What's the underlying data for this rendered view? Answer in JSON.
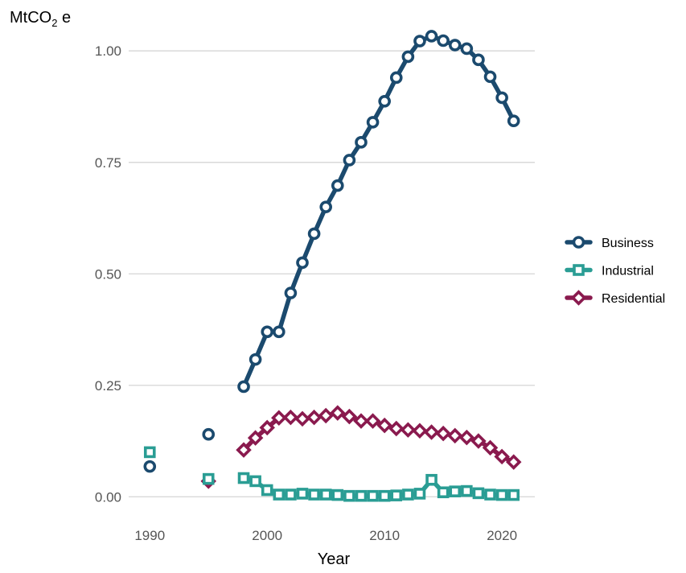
{
  "chart_data": {
    "type": "line",
    "title": "",
    "xlabel": "Year",
    "ylabel_main": "MtCO",
    "ylabel_sub": "2",
    "ylabel_suffix": " e",
    "xlim": [
      1988.2,
      2022.8
    ],
    "ylim": [
      -0.05,
      1.06
    ],
    "xticks": [
      1990,
      2000,
      2010,
      2020
    ],
    "xtick_labels": [
      "1990",
      "2000",
      "2010",
      "2020"
    ],
    "yticks": [
      0,
      0.25,
      0.5,
      0.75,
      1.0
    ],
    "ytick_labels": [
      "0.00",
      "0.25",
      "0.50",
      "0.75",
      "1.00"
    ],
    "grid": "horizontal major",
    "legend_position": "right",
    "series": [
      {
        "name": "Business",
        "color": "#1b4a6e",
        "marker": "circle",
        "points": [
          {
            "x": 1990,
            "y": 0.068,
            "line": false
          },
          {
            "x": 1995,
            "y": 0.14,
            "line": false
          },
          {
            "x": 1998,
            "y": 0.247,
            "line": true
          },
          {
            "x": 1999,
            "y": 0.308,
            "line": true
          },
          {
            "x": 2000,
            "y": 0.37,
            "line": true
          },
          {
            "x": 2001,
            "y": 0.37,
            "line": true
          },
          {
            "x": 2002,
            "y": 0.457,
            "line": true
          },
          {
            "x": 2003,
            "y": 0.525,
            "line": true
          },
          {
            "x": 2004,
            "y": 0.59,
            "line": true
          },
          {
            "x": 2005,
            "y": 0.65,
            "line": true
          },
          {
            "x": 2006,
            "y": 0.698,
            "line": true
          },
          {
            "x": 2007,
            "y": 0.755,
            "line": true
          },
          {
            "x": 2008,
            "y": 0.795,
            "line": true
          },
          {
            "x": 2009,
            "y": 0.84,
            "line": true
          },
          {
            "x": 2010,
            "y": 0.887,
            "line": true
          },
          {
            "x": 2011,
            "y": 0.94,
            "line": true
          },
          {
            "x": 2012,
            "y": 0.987,
            "line": true
          },
          {
            "x": 2013,
            "y": 1.022,
            "line": true
          },
          {
            "x": 2014,
            "y": 1.033,
            "line": true
          },
          {
            "x": 2015,
            "y": 1.023,
            "line": true
          },
          {
            "x": 2016,
            "y": 1.013,
            "line": true
          },
          {
            "x": 2017,
            "y": 1.005,
            "line": true
          },
          {
            "x": 2018,
            "y": 0.98,
            "line": true
          },
          {
            "x": 2019,
            "y": 0.942,
            "line": true
          },
          {
            "x": 2020,
            "y": 0.895,
            "line": true
          },
          {
            "x": 2021,
            "y": 0.843,
            "line": true
          }
        ]
      },
      {
        "name": "Industrial",
        "color": "#2a9d94",
        "marker": "square",
        "points": [
          {
            "x": 1990,
            "y": 0.1,
            "line": false
          },
          {
            "x": 1995,
            "y": 0.04,
            "line": false
          },
          {
            "x": 1998,
            "y": 0.042,
            "line": true
          },
          {
            "x": 1999,
            "y": 0.035,
            "line": true
          },
          {
            "x": 2000,
            "y": 0.015,
            "line": true
          },
          {
            "x": 2001,
            "y": 0.005,
            "line": true
          },
          {
            "x": 2002,
            "y": 0.005,
            "line": true
          },
          {
            "x": 2003,
            "y": 0.007,
            "line": true
          },
          {
            "x": 2004,
            "y": 0.005,
            "line": true
          },
          {
            "x": 2005,
            "y": 0.005,
            "line": true
          },
          {
            "x": 2006,
            "y": 0.004,
            "line": true
          },
          {
            "x": 2007,
            "y": 0.002,
            "line": true
          },
          {
            "x": 2008,
            "y": 0.002,
            "line": true
          },
          {
            "x": 2009,
            "y": 0.002,
            "line": true
          },
          {
            "x": 2010,
            "y": 0.002,
            "line": true
          },
          {
            "x": 2011,
            "y": 0.003,
            "line": true
          },
          {
            "x": 2012,
            "y": 0.005,
            "line": true
          },
          {
            "x": 2013,
            "y": 0.007,
            "line": true
          },
          {
            "x": 2014,
            "y": 0.038,
            "line": true
          },
          {
            "x": 2015,
            "y": 0.01,
            "line": true
          },
          {
            "x": 2016,
            "y": 0.012,
            "line": true
          },
          {
            "x": 2017,
            "y": 0.013,
            "line": true
          },
          {
            "x": 2018,
            "y": 0.008,
            "line": true
          },
          {
            "x": 2019,
            "y": 0.005,
            "line": true
          },
          {
            "x": 2020,
            "y": 0.004,
            "line": true
          },
          {
            "x": 2021,
            "y": 0.004,
            "line": true
          }
        ]
      },
      {
        "name": "Residential",
        "color": "#8a1a4e",
        "marker": "diamond",
        "points": [
          {
            "x": 1995,
            "y": 0.035,
            "line": false
          },
          {
            "x": 1998,
            "y": 0.105,
            "line": true
          },
          {
            "x": 1999,
            "y": 0.132,
            "line": true
          },
          {
            "x": 2000,
            "y": 0.155,
            "line": true
          },
          {
            "x": 2001,
            "y": 0.177,
            "line": true
          },
          {
            "x": 2002,
            "y": 0.178,
            "line": true
          },
          {
            "x": 2003,
            "y": 0.175,
            "line": true
          },
          {
            "x": 2004,
            "y": 0.178,
            "line": true
          },
          {
            "x": 2005,
            "y": 0.182,
            "line": true
          },
          {
            "x": 2006,
            "y": 0.188,
            "line": true
          },
          {
            "x": 2007,
            "y": 0.18,
            "line": true
          },
          {
            "x": 2008,
            "y": 0.17,
            "line": true
          },
          {
            "x": 2009,
            "y": 0.17,
            "line": true
          },
          {
            "x": 2010,
            "y": 0.16,
            "line": true
          },
          {
            "x": 2011,
            "y": 0.153,
            "line": true
          },
          {
            "x": 2012,
            "y": 0.15,
            "line": true
          },
          {
            "x": 2013,
            "y": 0.148,
            "line": true
          },
          {
            "x": 2014,
            "y": 0.145,
            "line": true
          },
          {
            "x": 2015,
            "y": 0.142,
            "line": true
          },
          {
            "x": 2016,
            "y": 0.137,
            "line": true
          },
          {
            "x": 2017,
            "y": 0.133,
            "line": true
          },
          {
            "x": 2018,
            "y": 0.125,
            "line": true
          },
          {
            "x": 2019,
            "y": 0.11,
            "line": true
          },
          {
            "x": 2020,
            "y": 0.09,
            "line": true
          },
          {
            "x": 2021,
            "y": 0.078,
            "line": true
          }
        ]
      }
    ]
  }
}
